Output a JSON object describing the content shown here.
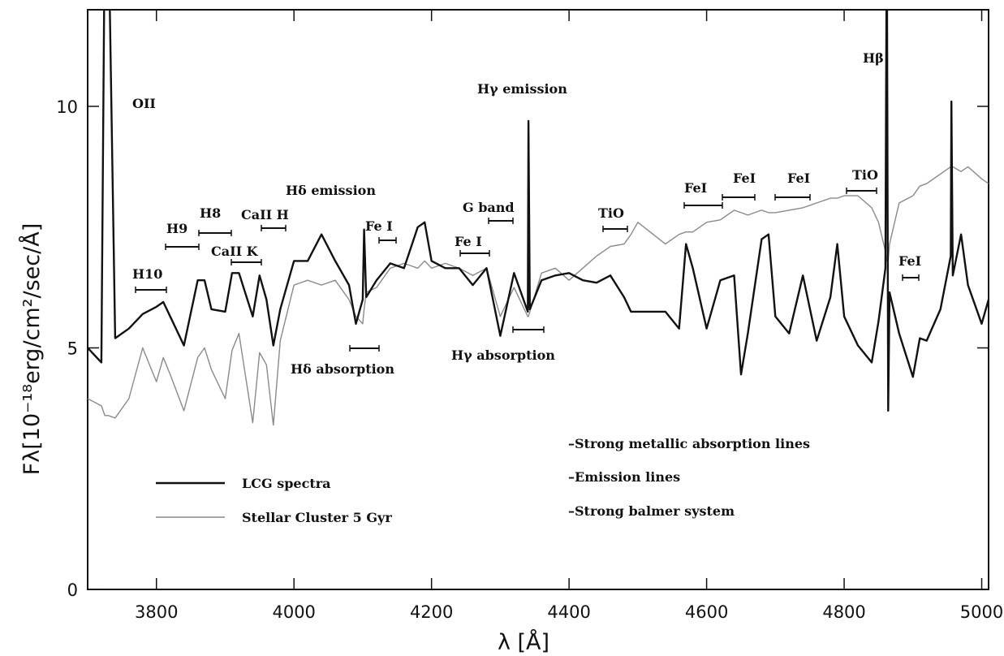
{
  "chart_data": {
    "type": "line",
    "xlabel": "λ [Å]",
    "ylabel": "Fλ[10⁻¹⁸erg/cm²/sec/Å]",
    "xlim": [
      3700,
      5010
    ],
    "ylim": [
      0,
      12
    ],
    "xticks": [
      3800,
      4000,
      4200,
      4400,
      4600,
      4800,
      5000
    ],
    "yticks": [
      0,
      5,
      10
    ],
    "x": [
      3700,
      3720,
      3725,
      3730,
      3740,
      3760,
      3780,
      3800,
      3810,
      3820,
      3840,
      3860,
      3870,
      3880,
      3900,
      3910,
      3920,
      3940,
      3950,
      3960,
      3970,
      3980,
      4000,
      4020,
      4040,
      4060,
      4080,
      4090,
      4100,
      4102,
      4105,
      4120,
      4140,
      4160,
      4180,
      4190,
      4200,
      4220,
      4240,
      4260,
      4280,
      4300,
      4320,
      4340,
      4341,
      4343,
      4360,
      4380,
      4400,
      4420,
      4440,
      4460,
      4480,
      4490,
      4500,
      4540,
      4560,
      4570,
      4580,
      4600,
      4620,
      4640,
      4650,
      4660,
      4680,
      4690,
      4700,
      4720,
      4740,
      4760,
      4780,
      4790,
      4800,
      4820,
      4840,
      4850,
      4860,
      4862,
      4864,
      4866,
      4880,
      4900,
      4910,
      4920,
      4940,
      4955,
      4956,
      4958,
      4970,
      4980,
      5000,
      5010
    ],
    "series": [
      {
        "name": "LCG spectra",
        "color": "#111111",
        "width": 2.4,
        "values": [
          5.0,
          4.7,
          14,
          14,
          5.2,
          5.4,
          5.7,
          5.85,
          5.95,
          5.65,
          5.05,
          6.4,
          6.4,
          5.8,
          5.75,
          6.55,
          6.55,
          5.65,
          6.5,
          6.0,
          5.05,
          5.8,
          6.8,
          6.8,
          7.35,
          6.8,
          6.3,
          5.5,
          6.0,
          7.45,
          6.05,
          6.4,
          6.75,
          6.65,
          7.5,
          7.6,
          6.8,
          6.65,
          6.65,
          6.3,
          6.65,
          5.25,
          6.55,
          5.75,
          9.7,
          5.8,
          6.4,
          6.5,
          6.55,
          6.4,
          6.35,
          6.5,
          6.05,
          5.75,
          5.75,
          5.75,
          5.4,
          7.15,
          6.65,
          5.4,
          6.4,
          6.5,
          4.45,
          5.3,
          7.25,
          7.35,
          5.65,
          5.3,
          6.5,
          5.15,
          6.05,
          7.15,
          5.65,
          5.05,
          4.7,
          5.55,
          6.65,
          14,
          3.7,
          6.15,
          5.3,
          4.4,
          5.2,
          5.15,
          5.8,
          6.9,
          10.1,
          6.5,
          7.35,
          6.3,
          5.5,
          6.0
        ]
      },
      {
        "name": "Stellar Cluster 5 Gyr",
        "color": "#8a8a8a",
        "width": 1.4,
        "values": [
          3.95,
          3.8,
          3.6,
          3.6,
          3.55,
          3.95,
          5.0,
          4.3,
          4.8,
          4.45,
          3.7,
          4.8,
          5.0,
          4.55,
          3.95,
          4.95,
          5.3,
          3.45,
          4.9,
          4.65,
          3.4,
          5.15,
          6.3,
          6.4,
          6.3,
          6.4,
          6.0,
          5.65,
          5.5,
          5.8,
          6.15,
          6.25,
          6.65,
          6.75,
          6.65,
          6.8,
          6.65,
          6.75,
          6.65,
          6.5,
          6.65,
          5.65,
          6.25,
          5.65,
          5.65,
          5.75,
          6.55,
          6.65,
          6.4,
          6.65,
          6.9,
          7.1,
          7.15,
          7.35,
          7.6,
          7.15,
          7.35,
          7.4,
          7.4,
          7.6,
          7.65,
          7.85,
          7.8,
          7.75,
          7.85,
          7.8,
          7.8,
          7.85,
          7.9,
          8.0,
          8.1,
          8.1,
          8.15,
          8.15,
          7.9,
          7.6,
          7.0,
          6.8,
          6.8,
          7.15,
          8.0,
          8.15,
          8.35,
          8.4,
          8.6,
          8.75,
          8.75,
          8.75,
          8.65,
          8.75,
          8.5,
          8.4
        ]
      }
    ],
    "annotations": [
      "OII",
      "H10",
      "H9",
      "H8",
      "CaII K",
      "CaII H",
      "Hδ emission",
      "Fe I",
      "Fe I",
      "G band",
      "Hγ emission",
      "TiO",
      "FeI",
      "FeI",
      "FeI",
      "TiO",
      "Hβ",
      "FeI",
      "Hδ absorption",
      "Hγ  absorption"
    ],
    "notes": [
      "–Strong metallic absorption lines",
      "–Emission lines",
      "–Strong balmer system"
    ]
  }
}
